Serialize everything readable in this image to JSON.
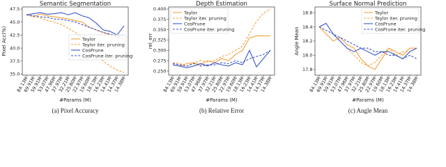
{
  "chart_data": [
    {
      "type": "line",
      "title": "Semantic Segmentation",
      "ylabel": "Pixel Acc(%)",
      "xlabel": "#Params (M)",
      "caption": "(a) Pixel Accuracy",
      "legend": "lower right",
      "categories": [
        "84.13M",
        "69.91M",
        "59.91M",
        "53.07M",
        "47.96M",
        "37.97M",
        "32.21M",
        "25.80M",
        "22.97M",
        "19.60M",
        "18.13M",
        "16.23M",
        "14.41M",
        "14.37M",
        "14.38M"
      ],
      "ylim": [
        34.8,
        47.9
      ],
      "yticks": [
        {
          "value": 35,
          "label": "35.0"
        },
        37.5,
        {
          "value": 40,
          "label": "40.0"
        },
        42.5,
        {
          "value": 45,
          "label": "45.0"
        },
        47.5
      ],
      "series": [
        {
          "name": "Taylor",
          "color": "#f5a03c",
          "dash": false,
          "values": [
            46.4,
            46.1,
            46.5,
            46.2,
            46.0,
            45.8,
            45.6,
            45.3,
            45.0,
            44.0,
            43.5,
            43.0,
            42.5,
            42.2,
            41.8
          ]
        },
        {
          "name": "Taylor iter. pruning",
          "color": "#f5a03c",
          "dash": true,
          "values": [
            46.4,
            46.0,
            45.8,
            45.3,
            45.0,
            44.5,
            43.8,
            43.0,
            42.0,
            40.5,
            39.0,
            37.5,
            36.5,
            35.8,
            35.3
          ]
        },
        {
          "name": "CosPrune",
          "color": "#3a55c8",
          "dash": false,
          "values": [
            46.4,
            46.6,
            46.8,
            46.5,
            46.6,
            46.8,
            46.4,
            46.8,
            46.2,
            45.8,
            44.8,
            43.5,
            43.2,
            42.5,
            44.3
          ]
        },
        {
          "name": "CosPrune iter. pruning",
          "color": "#3a55c8",
          "dash": true,
          "values": [
            46.4,
            46.2,
            46.0,
            45.9,
            45.6,
            45.5,
            45.3,
            45.0,
            44.5,
            44.0,
            43.5,
            43.0,
            42.7,
            42.3,
            42.4
          ]
        }
      ]
    },
    {
      "type": "line",
      "title": "Depth Estimation",
      "ylabel": "rel_err",
      "xlabel": "#Params (M)",
      "caption": "(b) Relative Error",
      "legend": "upper left",
      "categories": [
        "84.13M",
        "69.91M",
        "59.91M",
        "53.07M",
        "47.96M",
        "37.97M",
        "32.21M",
        "25.80M",
        "22.97M",
        "19.60M",
        "18.13M",
        "16.23M",
        "14.41M",
        "14.37M",
        "14.38M"
      ],
      "ylim": [
        0.24,
        0.405
      ],
      "yticks": [
        {
          "value": 0.25,
          "label": "0.250"
        },
        0.275,
        {
          "value": 0.3,
          "label": "0.300"
        },
        0.325,
        {
          "value": 0.35,
          "label": "0.350"
        },
        0.375,
        {
          "value": 0.4,
          "label": "0.400"
        }
      ],
      "series": [
        {
          "name": "Taylor",
          "color": "#f5a03c",
          "dash": false,
          "values": [
            0.265,
            0.262,
            0.268,
            0.27,
            0.265,
            0.275,
            0.27,
            0.28,
            0.275,
            0.29,
            0.3,
            0.33,
            0.335,
            0.335,
            0.335
          ]
        },
        {
          "name": "Taylor iter. pruning",
          "color": "#f5a03c",
          "dash": true,
          "values": [
            0.27,
            0.268,
            0.262,
            0.27,
            0.275,
            0.272,
            0.275,
            0.285,
            0.29,
            0.3,
            0.31,
            0.34,
            0.37,
            0.39,
            0.4
          ]
        },
        {
          "name": "CosPrune",
          "color": "#3a55c8",
          "dash": false,
          "values": [
            0.265,
            0.262,
            0.258,
            0.262,
            0.268,
            0.262,
            0.27,
            0.265,
            0.262,
            0.27,
            0.265,
            0.3,
            0.26,
            0.28,
            0.3
          ]
        },
        {
          "name": "CosPrune iter. pruning",
          "color": "#3a55c8",
          "dash": true,
          "values": [
            0.268,
            0.265,
            0.262,
            0.268,
            0.262,
            0.265,
            0.265,
            0.27,
            0.268,
            0.275,
            0.27,
            0.28,
            0.285,
            0.29,
            0.3
          ]
        }
      ]
    },
    {
      "type": "line",
      "title": "Surface Normal Prediction",
      "ylabel": "Angle Mean",
      "xlabel": "#Params (M)",
      "caption": "(c) Angle Mean",
      "legend": "upper right",
      "categories": [
        "84.13M",
        "69.91M",
        "59.91M",
        "53.07M",
        "47.96M",
        "37.97M",
        "32.21M",
        "25.80M",
        "22.97M",
        "19.60M",
        "18.13M",
        "16.23M",
        "14.41M",
        "14.37M",
        "14.38M"
      ],
      "ylim": [
        17.72,
        18.68
      ],
      "yticks": [
        17.8,
        {
          "value": 18,
          "label": "18.0"
        },
        18.2,
        18.4,
        18.6
      ],
      "series": [
        {
          "name": "Taylor",
          "color": "#f5a03c",
          "dash": false,
          "values": [
            18.4,
            18.3,
            18.2,
            18.25,
            18.15,
            18.1,
            17.95,
            17.85,
            17.8,
            17.95,
            18.1,
            18.05,
            18.0,
            18.1,
            18.1
          ]
        },
        {
          "name": "Taylor iter. pruning",
          "color": "#f5a03c",
          "dash": true,
          "values": [
            18.4,
            18.35,
            18.3,
            18.2,
            18.1,
            18.0,
            17.9,
            17.85,
            17.9,
            18.0,
            18.1,
            18.0,
            18.05,
            18.05,
            18.1
          ]
        },
        {
          "name": "CosPrune",
          "color": "#3a55c8",
          "dash": false,
          "values": [
            18.4,
            18.45,
            18.3,
            18.2,
            18.1,
            18.05,
            18.1,
            18.05,
            18.0,
            18.05,
            18.05,
            18.0,
            17.95,
            18.05,
            18.1
          ]
        },
        {
          "name": "CosPrune iter. pruning",
          "color": "#3a55c8",
          "dash": true,
          "values": [
            18.4,
            18.35,
            18.3,
            18.25,
            18.2,
            18.15,
            18.1,
            18.1,
            18.05,
            18.05,
            18.0,
            18.0,
            17.95,
            18.0,
            17.95
          ]
        }
      ]
    }
  ]
}
